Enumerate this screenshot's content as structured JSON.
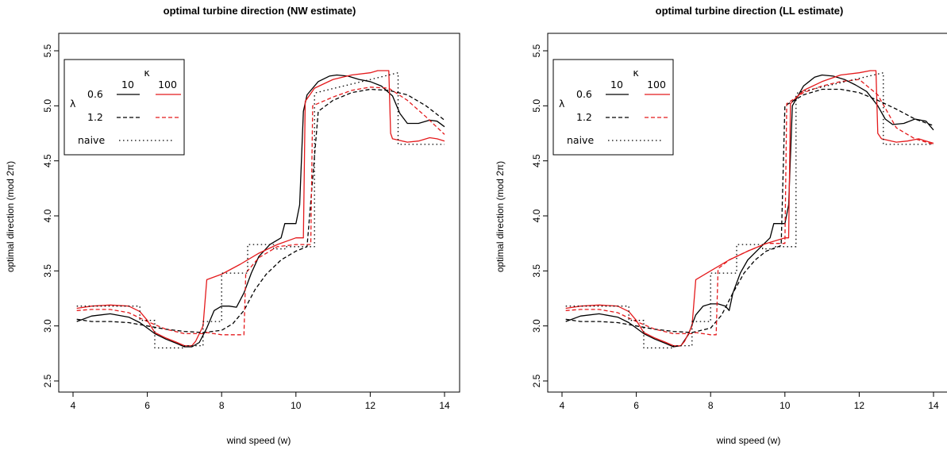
{
  "figure": {
    "colors": {
      "black": "#000000",
      "red": "#e41a1c"
    }
  },
  "chart_data": [
    {
      "type": "line",
      "title": "optimal turbine direction (NW estimate)",
      "xlabel": "wind speed (w)",
      "ylabel": "optimal direction (mod 2π)",
      "xlim": [
        4,
        14
      ],
      "ylim": [
        2.5,
        5.5
      ],
      "x_ticks": [
        "4",
        "6",
        "8",
        "10",
        "12",
        "14"
      ],
      "y_ticks": [
        "2.5",
        "3.0",
        "3.5",
        "4.0",
        "4.5",
        "5.0",
        "5.5"
      ],
      "grid": false,
      "legend": {
        "placement": "top-left",
        "kappa_symbol": "κ",
        "lambda_symbol": "λ",
        "kappa_values": [
          "10",
          "100"
        ],
        "rows": [
          "0.6",
          "1.2",
          "naive"
        ]
      },
      "series": [
        {
          "key": "l06_k10",
          "color": "#000000",
          "dash": "solid",
          "x": [
            4.1,
            4.5,
            5.0,
            5.5,
            5.8,
            6.0,
            6.2,
            6.5,
            6.8,
            7.0,
            7.2,
            7.4,
            7.6,
            7.8,
            8.0,
            8.2,
            8.4,
            8.6,
            8.8,
            9.0,
            9.3,
            9.6,
            9.7,
            9.9,
            10.0,
            10.1,
            10.2,
            10.3,
            10.6,
            10.9,
            11.1,
            11.4,
            11.7,
            12.0,
            12.3,
            12.6,
            12.8,
            13.0,
            13.3,
            13.6,
            13.8,
            14.0
          ],
          "y": [
            3.04,
            3.09,
            3.11,
            3.08,
            3.03,
            2.98,
            2.93,
            2.88,
            2.84,
            2.81,
            2.81,
            2.85,
            2.98,
            3.14,
            3.18,
            3.18,
            3.17,
            3.3,
            3.48,
            3.63,
            3.74,
            3.8,
            3.93,
            3.93,
            3.93,
            4.1,
            4.95,
            5.1,
            5.22,
            5.27,
            5.28,
            5.27,
            5.24,
            5.22,
            5.18,
            5.09,
            4.93,
            4.84,
            4.84,
            4.87,
            4.86,
            4.81
          ]
        },
        {
          "key": "l06_k100",
          "color": "#e41a1c",
          "dash": "solid",
          "x": [
            4.1,
            4.5,
            5.0,
            5.5,
            5.8,
            6.0,
            6.2,
            6.5,
            6.8,
            7.0,
            7.2,
            7.3,
            7.5,
            7.6,
            8.0,
            8.5,
            9.0,
            9.5,
            10.0,
            10.2,
            10.25,
            10.5,
            11.0,
            11.5,
            12.0,
            12.2,
            12.5,
            12.55,
            12.6,
            13.0,
            13.3,
            13.6,
            13.8,
            14.0
          ],
          "y": [
            3.16,
            3.18,
            3.19,
            3.18,
            3.13,
            3.05,
            2.94,
            2.89,
            2.85,
            2.82,
            2.82,
            2.86,
            3.0,
            3.42,
            3.47,
            3.56,
            3.66,
            3.74,
            3.8,
            3.8,
            5.04,
            5.16,
            5.24,
            5.28,
            5.3,
            5.32,
            5.32,
            4.75,
            4.7,
            4.67,
            4.68,
            4.71,
            4.7,
            4.68
          ]
        },
        {
          "key": "l12_k10",
          "color": "#000000",
          "dash": "dashed",
          "x": [
            4.1,
            4.5,
            5.0,
            5.5,
            6.0,
            6.5,
            7.0,
            7.5,
            8.0,
            8.3,
            8.6,
            8.9,
            9.2,
            9.6,
            10.0,
            10.3,
            10.6,
            11.0,
            11.5,
            12.0,
            12.5,
            13.0,
            13.5,
            14.0
          ],
          "y": [
            3.06,
            3.04,
            3.04,
            3.03,
            3.0,
            2.97,
            2.95,
            2.94,
            2.96,
            3.02,
            3.14,
            3.33,
            3.47,
            3.6,
            3.68,
            3.72,
            4.95,
            5.05,
            5.12,
            5.15,
            5.14,
            5.1,
            5.0,
            4.87
          ]
        },
        {
          "key": "l12_k100",
          "color": "#e41a1c",
          "dash": "dashed",
          "x": [
            4.1,
            4.5,
            5.0,
            5.5,
            6.0,
            6.5,
            7.0,
            7.5,
            7.6,
            8.0,
            8.5,
            8.6,
            8.65,
            9.0,
            9.5,
            10.0,
            10.4,
            10.45,
            11.0,
            11.5,
            12.0,
            12.5,
            13.0,
            13.5,
            14.0
          ],
          "y": [
            3.14,
            3.15,
            3.15,
            3.12,
            3.04,
            2.97,
            2.93,
            2.93,
            2.94,
            2.92,
            2.92,
            2.92,
            3.48,
            3.62,
            3.72,
            3.74,
            3.74,
            5.0,
            5.08,
            5.14,
            5.17,
            5.16,
            5.05,
            4.9,
            4.74
          ]
        },
        {
          "key": "naive",
          "color": "#000000",
          "dash": "dotted",
          "x": [
            4.1,
            5.8,
            5.8,
            6.2,
            6.2,
            7.0,
            7.0,
            7.5,
            7.5,
            8.0,
            8.0,
            8.7,
            8.7,
            9.4,
            9.4,
            9.7,
            9.7,
            10.5,
            10.5,
            10.55,
            12.75,
            12.75,
            14.0
          ],
          "y": [
            3.18,
            3.18,
            3.05,
            3.05,
            2.8,
            2.8,
            2.82,
            2.82,
            3.04,
            3.04,
            3.48,
            3.48,
            3.74,
            3.74,
            3.7,
            3.7,
            3.72,
            3.72,
            5.1,
            5.12,
            5.3,
            4.65,
            4.65
          ]
        }
      ]
    },
    {
      "type": "line",
      "title": "optimal turbine direction (LL estimate)",
      "xlabel": "wind speed (w)",
      "ylabel": "optimal direction (mod 2π)",
      "xlim": [
        4,
        14
      ],
      "ylim": [
        2.5,
        5.5
      ],
      "x_ticks": [
        "4",
        "6",
        "8",
        "10",
        "12",
        "14"
      ],
      "y_ticks": [
        "2.5",
        "3.0",
        "3.5",
        "4.0",
        "4.5",
        "5.0",
        "5.5"
      ],
      "grid": false,
      "legend": {
        "placement": "top-left",
        "kappa_symbol": "κ",
        "lambda_symbol": "λ",
        "kappa_values": [
          "10",
          "100"
        ],
        "rows": [
          "0.6",
          "1.2",
          "naive"
        ]
      },
      "series": [
        {
          "key": "l06_k10",
          "color": "#000000",
          "dash": "solid",
          "x": [
            4.1,
            4.5,
            5.0,
            5.5,
            5.8,
            6.0,
            6.2,
            6.5,
            6.8,
            7.0,
            7.2,
            7.4,
            7.6,
            7.8,
            8.0,
            8.2,
            8.4,
            8.5,
            8.6,
            8.8,
            9.0,
            9.3,
            9.6,
            9.7,
            9.9,
            10.0,
            10.1,
            10.2,
            10.5,
            10.8,
            11.0,
            11.3,
            11.6,
            11.9,
            12.2,
            12.5,
            12.7,
            12.9,
            13.2,
            13.5,
            13.8,
            14.0
          ],
          "y": [
            3.04,
            3.09,
            3.11,
            3.08,
            3.03,
            2.98,
            2.93,
            2.88,
            2.84,
            2.81,
            2.82,
            2.92,
            3.1,
            3.18,
            3.2,
            3.2,
            3.18,
            3.14,
            3.3,
            3.48,
            3.6,
            3.7,
            3.8,
            3.93,
            3.93,
            3.93,
            4.1,
            5.0,
            5.18,
            5.26,
            5.28,
            5.27,
            5.24,
            5.19,
            5.13,
            5.0,
            4.88,
            4.83,
            4.84,
            4.88,
            4.86,
            4.78
          ]
        },
        {
          "key": "l06_k100",
          "color": "#e41a1c",
          "dash": "solid",
          "x": [
            4.1,
            4.5,
            5.0,
            5.5,
            5.8,
            6.0,
            6.2,
            6.5,
            6.8,
            7.0,
            7.2,
            7.3,
            7.5,
            7.6,
            8.0,
            8.5,
            9.0,
            9.5,
            10.0,
            10.1,
            10.15,
            10.5,
            11.0,
            11.5,
            12.0,
            12.3,
            12.45,
            12.5,
            12.6,
            13.0,
            13.3,
            13.6,
            13.8,
            14.0
          ],
          "y": [
            3.16,
            3.18,
            3.19,
            3.18,
            3.13,
            3.05,
            2.94,
            2.89,
            2.85,
            2.82,
            2.82,
            2.86,
            3.0,
            3.42,
            3.5,
            3.6,
            3.68,
            3.75,
            3.8,
            3.8,
            5.02,
            5.14,
            5.22,
            5.28,
            5.3,
            5.32,
            5.32,
            4.75,
            4.7,
            4.67,
            4.68,
            4.7,
            4.68,
            4.66
          ]
        },
        {
          "key": "l12_k10",
          "color": "#000000",
          "dash": "dashed",
          "x": [
            4.1,
            4.5,
            5.0,
            5.5,
            6.0,
            6.5,
            7.0,
            7.5,
            8.0,
            8.3,
            8.6,
            8.9,
            9.2,
            9.5,
            9.9,
            10.0,
            10.5,
            11.0,
            11.5,
            12.0,
            12.5,
            13.0,
            13.5,
            14.0
          ],
          "y": [
            3.06,
            3.04,
            3.04,
            3.03,
            3.0,
            2.97,
            2.95,
            2.94,
            2.98,
            3.1,
            3.3,
            3.48,
            3.6,
            3.68,
            3.73,
            5.0,
            5.1,
            5.15,
            5.15,
            5.12,
            5.05,
            4.97,
            4.88,
            4.82
          ]
        },
        {
          "key": "l12_k100",
          "color": "#e41a1c",
          "dash": "dashed",
          "x": [
            4.1,
            4.5,
            5.0,
            5.5,
            6.0,
            6.5,
            7.0,
            7.5,
            7.6,
            8.0,
            8.15,
            8.2,
            8.5,
            9.0,
            9.5,
            10.0,
            10.05,
            10.5,
            11.0,
            11.5,
            12.0,
            12.5,
            13.0,
            13.5,
            14.0
          ],
          "y": [
            3.14,
            3.15,
            3.15,
            3.12,
            3.04,
            2.97,
            2.93,
            2.93,
            2.94,
            2.92,
            2.92,
            3.52,
            3.6,
            3.68,
            3.75,
            3.75,
            5.02,
            5.12,
            5.18,
            5.22,
            5.24,
            5.1,
            4.8,
            4.7,
            4.65
          ]
        },
        {
          "key": "naive",
          "color": "#000000",
          "dash": "dotted",
          "x": [
            4.1,
            5.8,
            5.8,
            6.2,
            6.2,
            7.0,
            7.0,
            7.5,
            7.5,
            8.0,
            8.0,
            8.7,
            8.7,
            9.4,
            9.4,
            9.7,
            9.7,
            10.3,
            10.3,
            10.35,
            12.65,
            12.65,
            14.0
          ],
          "y": [
            3.18,
            3.18,
            3.05,
            3.05,
            2.8,
            2.8,
            2.82,
            2.82,
            3.04,
            3.04,
            3.48,
            3.48,
            3.74,
            3.74,
            3.7,
            3.7,
            3.72,
            3.72,
            5.1,
            5.12,
            5.3,
            4.65,
            4.65
          ]
        }
      ]
    }
  ]
}
